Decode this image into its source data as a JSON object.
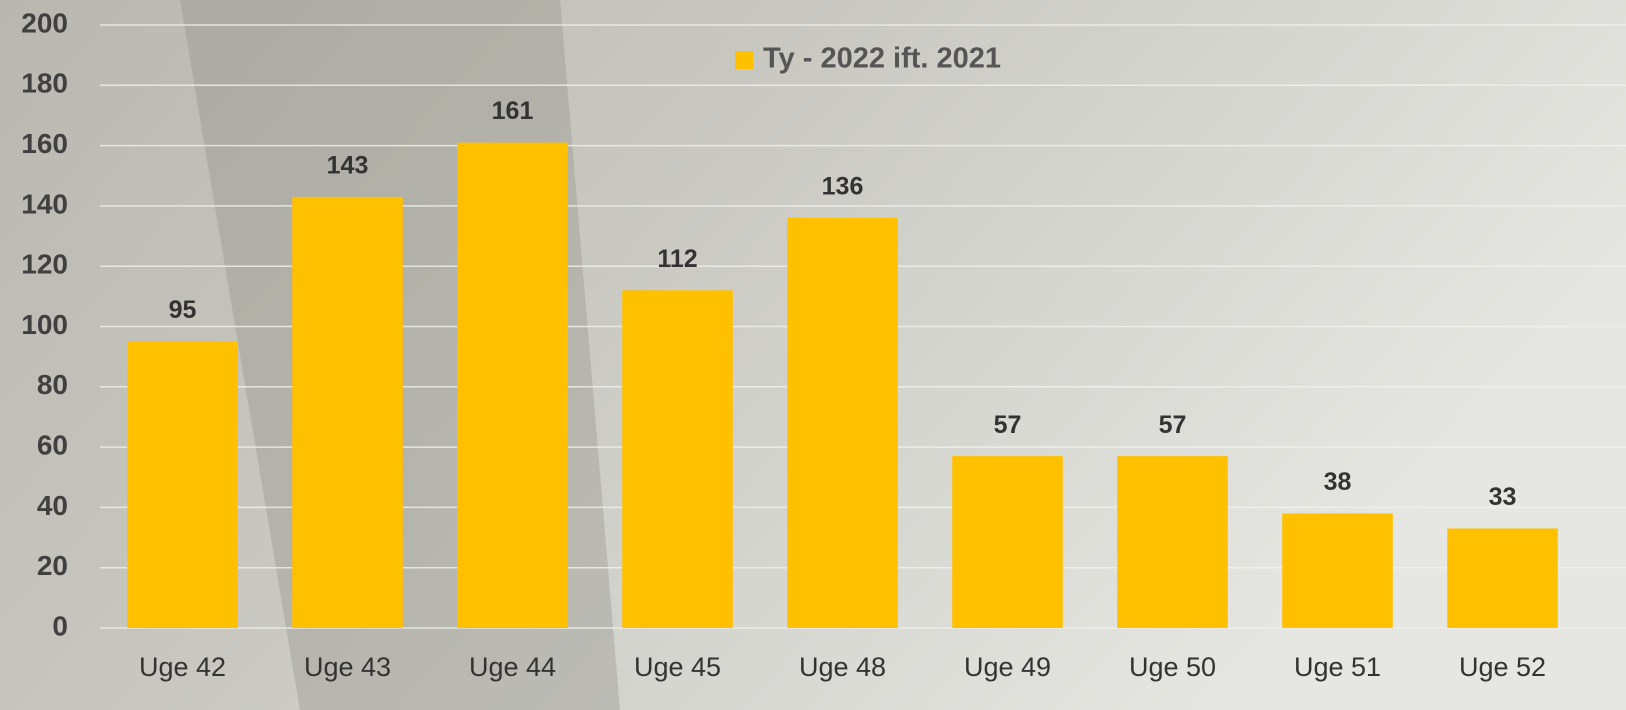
{
  "chart_data": {
    "type": "bar",
    "categories": [
      "Uge 42",
      "Uge 43",
      "Uge 44",
      "Uge 45",
      "Uge 48",
      "Uge 49",
      "Uge 50",
      "Uge 51",
      "Uge 52"
    ],
    "series": [
      {
        "name": "Ty - 2022 ift. 2021",
        "color": "#ffc000",
        "values": [
          95,
          143,
          161,
          112,
          136,
          57,
          57,
          38,
          33
        ]
      }
    ],
    "ylim": [
      0,
      200
    ],
    "yticks": [
      0,
      20,
      40,
      60,
      80,
      100,
      120,
      140,
      160,
      180,
      200
    ],
    "grid": true,
    "legend": "top"
  }
}
